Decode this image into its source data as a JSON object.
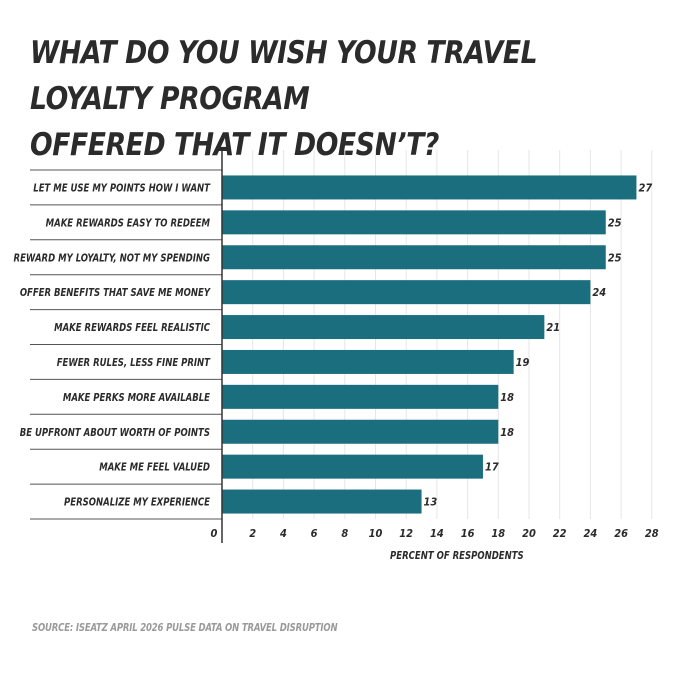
{
  "title": "WHAT DO YOU WISH YOUR TRAVEL LOYALTY PROGRAM\nOFFERED THAT IT DOESN’T?",
  "source": "SOURCE: ISEATZ APRIL 2026 PULSE DATA ON TRAVEL DISRUPTION",
  "colors": {
    "bar": "#1a6e7e",
    "text": "#2b2b2b",
    "grid": "#e6e6e6",
    "source": "#9a9a9a"
  },
  "chart_data": {
    "type": "bar",
    "orientation": "horizontal",
    "categories": [
      "LET ME USE MY POINTS HOW I WANT",
      "MAKE REWARDS EASY TO REDEEM",
      "REWARD MY LOYALTY, NOT MY SPENDING",
      "OFFER BENEFITS THAT SAVE ME MONEY",
      "MAKE REWARDS FEEL REALISTIC",
      "FEWER RULES, LESS FINE PRINT",
      "MAKE PERKS MORE AVAILABLE",
      "BE UPFRONT ABOUT WORTH OF POINTS",
      "MAKE ME FEEL VALUED",
      "PERSONALIZE MY EXPERIENCE"
    ],
    "values": [
      27,
      25,
      25,
      24,
      21,
      19,
      18,
      18,
      17,
      13
    ],
    "xlabel": "PERCENT OF RESPONDENTS",
    "ylabel": "",
    "xlim": [
      0,
      28
    ],
    "xticks": [
      0,
      2,
      4,
      6,
      8,
      10,
      12,
      14,
      16,
      18,
      20,
      22,
      24,
      26,
      28
    ],
    "grid": true,
    "data_labels": true
  }
}
